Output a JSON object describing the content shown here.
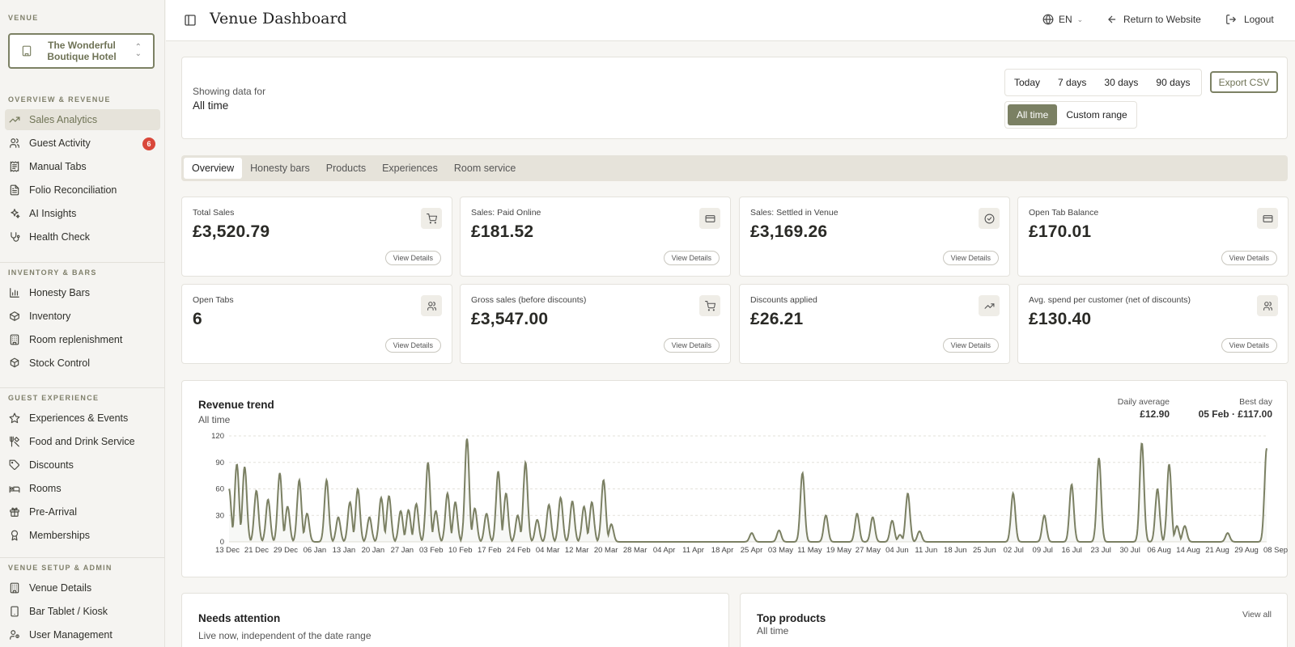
{
  "sidebar": {
    "venue_label": "Venue",
    "venue_name": "The Wonderful Boutique Hotel",
    "sections": [
      {
        "label": "Overview & Revenue",
        "items": [
          {
            "label": "Sales Analytics",
            "icon": "trending-up-icon",
            "active": true
          },
          {
            "label": "Guest Activity",
            "icon": "users-icon",
            "badge": "6"
          },
          {
            "label": "Manual Tabs",
            "icon": "receipt-icon"
          },
          {
            "label": "Folio Reconciliation",
            "icon": "file-text-icon"
          },
          {
            "label": "AI Insights",
            "icon": "sparkles-icon"
          },
          {
            "label": "Health Check",
            "icon": "stethoscope-icon"
          }
        ]
      },
      {
        "label": "Inventory & Bars",
        "items": [
          {
            "label": "Honesty Bars",
            "icon": "bar-chart-icon"
          },
          {
            "label": "Inventory",
            "icon": "package-icon"
          },
          {
            "label": "Room replenishment",
            "icon": "building-icon"
          },
          {
            "label": "Stock Control",
            "icon": "boxes-icon"
          }
        ]
      },
      {
        "label": "Guest Experience",
        "items": [
          {
            "label": "Experiences & Events",
            "icon": "star-icon"
          },
          {
            "label": "Food and Drink Service",
            "icon": "utensils-icon"
          },
          {
            "label": "Discounts",
            "icon": "tag-icon"
          },
          {
            "label": "Rooms",
            "icon": "bed-icon"
          },
          {
            "label": "Pre-Arrival",
            "icon": "gift-icon"
          },
          {
            "label": "Memberships",
            "icon": "award-icon"
          }
        ]
      },
      {
        "label": "Venue Setup & Admin",
        "items": [
          {
            "label": "Venue Details",
            "icon": "building-icon"
          },
          {
            "label": "Bar Tablet / Kiosk",
            "icon": "tablet-icon"
          },
          {
            "label": "User Management",
            "icon": "user-cog-icon"
          }
        ]
      }
    ]
  },
  "header": {
    "title": "Venue Dashboard",
    "language": "EN",
    "return_label": "Return to Website",
    "logout_label": "Logout"
  },
  "filter": {
    "showing_label": "Showing data for",
    "showing_value": "All time",
    "ranges": [
      "Today",
      "7 days",
      "30 days",
      "90 days"
    ],
    "export_label": "Export CSV",
    "all_time_label": "All time",
    "custom_label": "Custom range",
    "selected": "All time"
  },
  "tabs": [
    "Overview",
    "Honesty bars",
    "Products",
    "Experiences",
    "Room service"
  ],
  "active_tab": "Overview",
  "stats": [
    {
      "label": "Total Sales",
      "value": "£3,520.79",
      "icon": "cart-icon",
      "button": "View Details"
    },
    {
      "label": "Sales: Paid Online",
      "value": "£181.52",
      "icon": "card-icon",
      "button": "View Details"
    },
    {
      "label": "Sales: Settled in Venue",
      "value": "£3,169.26",
      "icon": "check-circle-icon",
      "button": "View Details"
    },
    {
      "label": "Open Tab Balance",
      "value": "£170.01",
      "icon": "card-icon",
      "button": "View Details"
    },
    {
      "label": "Open Tabs",
      "value": "6",
      "icon": "users-icon",
      "button": "View Details"
    },
    {
      "label": "Gross sales (before discounts)",
      "value": "£3,547.00",
      "icon": "cart-icon",
      "button": "View Details"
    },
    {
      "label": "Discounts applied",
      "value": "£26.21",
      "icon": "trending-up-icon",
      "button": "View Details"
    },
    {
      "label": "Avg. spend per customer (net of discounts)",
      "value": "£130.40",
      "icon": "users-icon",
      "button": "View Details"
    }
  ],
  "revenue": {
    "title": "Revenue trend",
    "subtitle": "All time",
    "avg_label": "Daily average",
    "avg_value": "£12.90",
    "best_label": "Best day",
    "best_value": "05 Feb · £117.00"
  },
  "chart_data": {
    "type": "area",
    "title": "Revenue trend",
    "subtitle": "All time",
    "ylim": [
      0,
      120
    ],
    "yticks": [
      0,
      30,
      60,
      90,
      120
    ],
    "grid": true,
    "color": "#7b8063",
    "xticks": [
      "13 Dec",
      "21 Dec",
      "29 Dec",
      "06 Jan",
      "13 Jan",
      "20 Jan",
      "27 Jan",
      "03 Feb",
      "10 Feb",
      "17 Feb",
      "24 Feb",
      "04 Mar",
      "12 Mar",
      "20 Mar",
      "28 Mar",
      "04 Apr",
      "11 Apr",
      "18 Apr",
      "25 Apr",
      "03 May",
      "11 May",
      "19 May",
      "27 May",
      "04 Jun",
      "11 Jun",
      "18 Jun",
      "25 Jun",
      "02 Jul",
      "09 Jul",
      "16 Jul",
      "23 Jul",
      "30 Jul",
      "06 Aug",
      "14 Aug",
      "21 Aug",
      "29 Aug",
      "08 Sep"
    ],
    "x_start": "13 Dec",
    "x_end": "10 Sep",
    "peaks": [
      {
        "day": 0,
        "value": 60
      },
      {
        "day": 2,
        "value": 88
      },
      {
        "day": 4,
        "value": 85
      },
      {
        "day": 7,
        "value": 58
      },
      {
        "day": 10,
        "value": 48
      },
      {
        "day": 13,
        "value": 78
      },
      {
        "day": 15,
        "value": 40
      },
      {
        "day": 18,
        "value": 70
      },
      {
        "day": 20,
        "value": 32
      },
      {
        "day": 25,
        "value": 70
      },
      {
        "day": 28,
        "value": 28
      },
      {
        "day": 31,
        "value": 45
      },
      {
        "day": 33,
        "value": 60
      },
      {
        "day": 36,
        "value": 28
      },
      {
        "day": 39,
        "value": 50
      },
      {
        "day": 41,
        "value": 52
      },
      {
        "day": 44,
        "value": 35
      },
      {
        "day": 46,
        "value": 36
      },
      {
        "day": 48,
        "value": 43
      },
      {
        "day": 51,
        "value": 90
      },
      {
        "day": 53,
        "value": 35
      },
      {
        "day": 56,
        "value": 55
      },
      {
        "day": 58,
        "value": 45
      },
      {
        "day": 61,
        "value": 117
      },
      {
        "day": 63,
        "value": 38
      },
      {
        "day": 66,
        "value": 32
      },
      {
        "day": 69,
        "value": 80
      },
      {
        "day": 71,
        "value": 55
      },
      {
        "day": 74,
        "value": 30
      },
      {
        "day": 76,
        "value": 90
      },
      {
        "day": 79,
        "value": 25
      },
      {
        "day": 82,
        "value": 42
      },
      {
        "day": 85,
        "value": 50
      },
      {
        "day": 88,
        "value": 46
      },
      {
        "day": 91,
        "value": 40
      },
      {
        "day": 93,
        "value": 45
      },
      {
        "day": 96,
        "value": 70
      },
      {
        "day": 98,
        "value": 20
      },
      {
        "day": 134,
        "value": 10
      },
      {
        "day": 141,
        "value": 13
      },
      {
        "day": 147,
        "value": 78
      },
      {
        "day": 153,
        "value": 30
      },
      {
        "day": 161,
        "value": 32
      },
      {
        "day": 165,
        "value": 28
      },
      {
        "day": 170,
        "value": 24
      },
      {
        "day": 172,
        "value": 8
      },
      {
        "day": 174,
        "value": 55
      },
      {
        "day": 177,
        "value": 12
      },
      {
        "day": 201,
        "value": 55
      },
      {
        "day": 209,
        "value": 30
      },
      {
        "day": 216,
        "value": 65
      },
      {
        "day": 223,
        "value": 95
      },
      {
        "day": 234,
        "value": 112
      },
      {
        "day": 238,
        "value": 60
      },
      {
        "day": 241,
        "value": 88
      },
      {
        "day": 243,
        "value": 18
      },
      {
        "day": 245,
        "value": 18
      },
      {
        "day": 256,
        "value": 10
      },
      {
        "day": 266,
        "value": 106
      }
    ],
    "total_days": 266
  },
  "needs_attention": {
    "title": "Needs attention",
    "subtitle": "Live now, independent of the date range"
  },
  "top_products": {
    "title": "Top products",
    "subtitle": "All time",
    "view_all": "View all"
  }
}
